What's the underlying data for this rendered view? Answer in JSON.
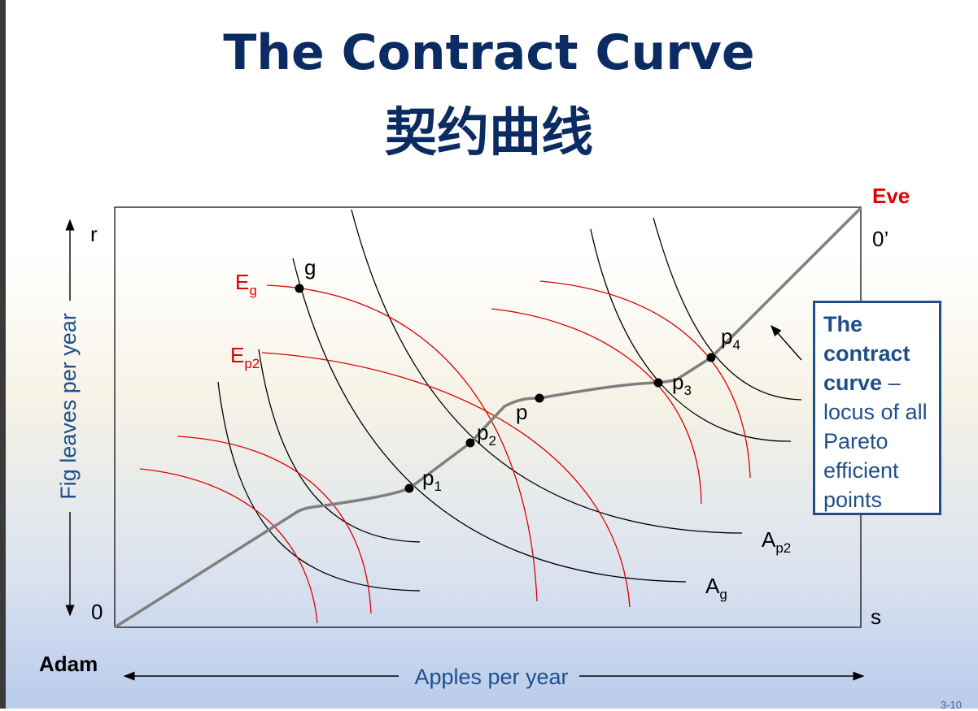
{
  "title": {
    "english": "The Contract Curve",
    "chinese": "契约曲线"
  },
  "diagram": {
    "adam_label": "Adam",
    "eve_label": "Eve",
    "origin_adam": "0",
    "origin_eve": "0’",
    "corner_r": "r",
    "corner_s": "s",
    "x_axis_label": "Apples per year",
    "y_axis_label": "Fig leaves per year",
    "points": [
      {
        "base": "g",
        "sub": ""
      },
      {
        "base": "p",
        "sub": "1"
      },
      {
        "base": "p",
        "sub": "2"
      },
      {
        "base": "p",
        "sub": ""
      },
      {
        "base": "p",
        "sub": "3"
      },
      {
        "base": "p",
        "sub": "4"
      }
    ],
    "eve_curve_labels": [
      {
        "base": "E",
        "sub": "g"
      },
      {
        "base": "E",
        "sub": "p2"
      }
    ],
    "adam_curve_labels": [
      {
        "base": "A",
        "sub": "p2"
      },
      {
        "base": "A",
        "sub": "g"
      }
    ],
    "colors": {
      "adam_curves": "#000000",
      "eve_curves": "#e00000",
      "contract_curve": "#7f7f7f",
      "title": "#0b2b63",
      "box": "#1f4f8a"
    }
  },
  "infobox": {
    "line1_bold": "The contract curve",
    "line1_rest": " – locus of all Pareto efficient points"
  },
  "slide_number": "3-10"
}
